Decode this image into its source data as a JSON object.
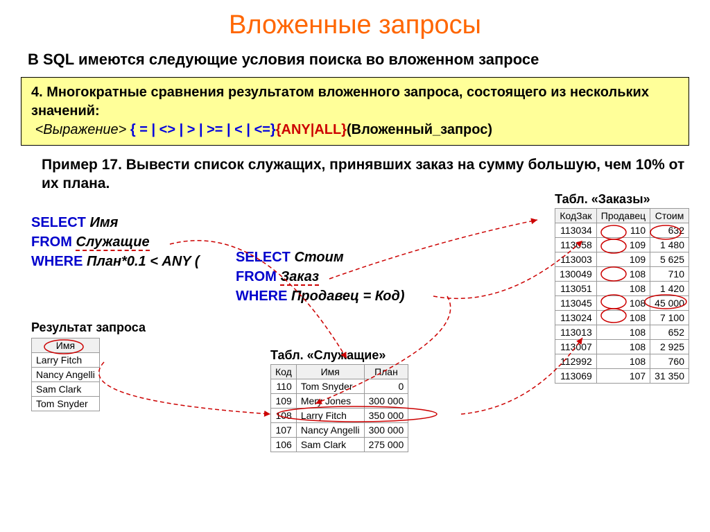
{
  "title": "Вложенные запросы",
  "subtitle": "В SQL имеются следующие условия поиска во вложенном запросе",
  "yellowbox": {
    "line1": "4. Многократные сравнения результатом вложенного запроса, состоящего из нескольких значений:",
    "expr_label": "<Выражение>",
    "operators": "{ = | <> | > | >= | < | <=}",
    "anyall": "{ANY|ALL}",
    "suffix": "(Вложенный_запрос)"
  },
  "example": "Пример 17. Вывести список служащих, принявших заказ на сумму большую, чем 10% от их плана.",
  "query": {
    "select": "SELECT",
    "from": "FROM",
    "where": "WHERE",
    "name": "Имя",
    "employees": "Служащие",
    "plan_cond": "План*0.1 < ANY (",
    "inner_select": "SELECT",
    "inner_from": "FROM",
    "inner_where": "WHERE",
    "cost": "Стоим",
    "order": "Заказ",
    "seller_eq": "Продавец = Код",
    "close": ")"
  },
  "result_label": "Результат запроса",
  "result_table": {
    "header": "Имя",
    "rows": [
      "Larry Fitch",
      "Nancy Angelli",
      "Sam Clark",
      "Tom Snyder"
    ]
  },
  "employees_table": {
    "title": "Табл. «Служащие»",
    "headers": [
      "Код",
      "Имя",
      "План"
    ],
    "rows": [
      [
        "110",
        "Tom Snyder",
        "0"
      ],
      [
        "109",
        "Mery Jones",
        "300 000"
      ],
      [
        "108",
        "Larry Fitch",
        "350 000"
      ],
      [
        "107",
        "Nancy Angelli",
        "300 000"
      ],
      [
        "106",
        "Sam Clark",
        "275 000"
      ]
    ]
  },
  "orders_table": {
    "title": "Табл. «Заказы»",
    "headers": [
      "КодЗак",
      "Продавец",
      "Стоим"
    ],
    "rows": [
      [
        "113034",
        "110",
        "632"
      ],
      [
        "113058",
        "109",
        "1 480"
      ],
      [
        "113003",
        "109",
        "5 625"
      ],
      [
        "130049",
        "108",
        "710"
      ],
      [
        "113051",
        "108",
        "1 420"
      ],
      [
        "113045",
        "108",
        "45 000"
      ],
      [
        "113024",
        "108",
        "7 100"
      ],
      [
        "113013",
        "108",
        "652"
      ],
      [
        "113007",
        "108",
        "2 925"
      ],
      [
        "112992",
        "108",
        "760"
      ],
      [
        "113069",
        "107",
        "31 350"
      ]
    ]
  },
  "colors": {
    "title": "#ff6600",
    "keyword": "#0000cc",
    "red": "#cc0000",
    "yellow_bg": "#ffff99"
  }
}
